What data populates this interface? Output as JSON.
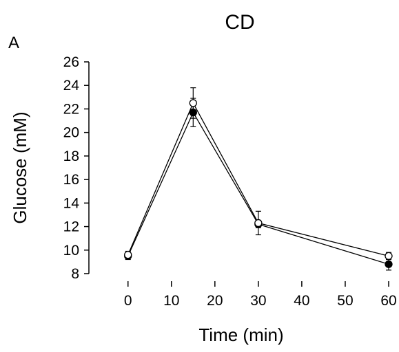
{
  "chart_data": {
    "type": "line",
    "title": "CD",
    "panel_label": "A",
    "xlabel": "Time (min)",
    "ylabel": "Glucose (mM)",
    "xlim": [
      -9,
      60
    ],
    "ylim": [
      8,
      26
    ],
    "xticks": [
      0,
      10,
      20,
      30,
      40,
      50,
      60
    ],
    "yticks": [
      8,
      10,
      12,
      14,
      16,
      18,
      20,
      22,
      24,
      26
    ],
    "grid": false,
    "legend": "none",
    "series": [
      {
        "marker": "filled-circle",
        "color": "#000000",
        "x": [
          0,
          15,
          30,
          60
        ],
        "y": [
          9.5,
          21.7,
          12.2,
          8.8
        ],
        "error": [
          0.3,
          1.2,
          0.3,
          0.5
        ]
      },
      {
        "marker": "open-circle",
        "color": "#000000",
        "x": [
          0,
          15,
          30,
          60
        ],
        "y": [
          9.6,
          22.5,
          12.3,
          9.5
        ],
        "error": [
          0.3,
          1.3,
          1.0,
          0.3
        ]
      }
    ]
  }
}
